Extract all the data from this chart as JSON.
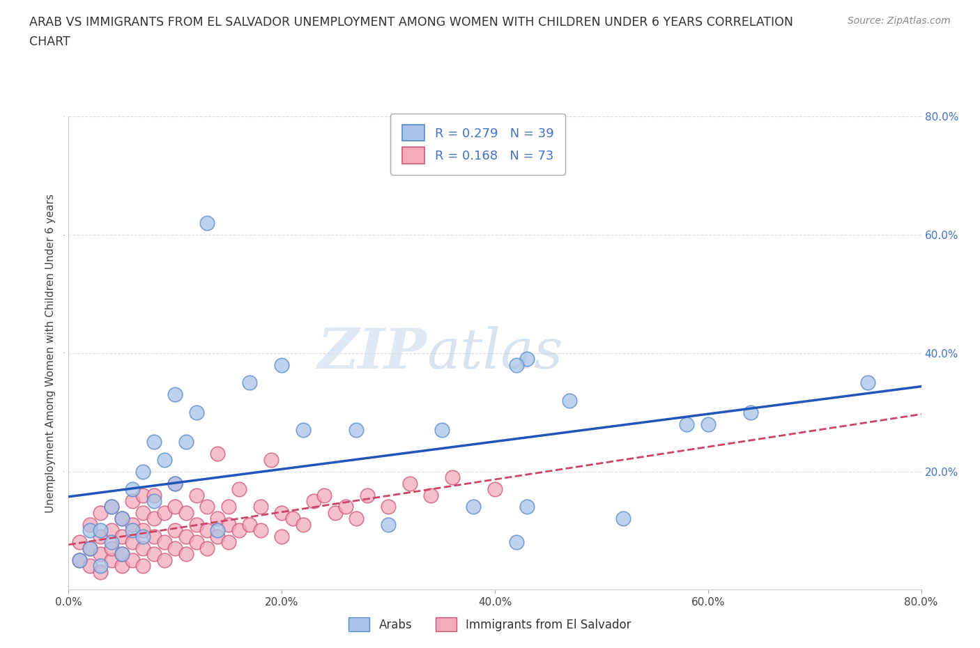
{
  "title_line1": "ARAB VS IMMIGRANTS FROM EL SALVADOR UNEMPLOYMENT AMONG WOMEN WITH CHILDREN UNDER 6 YEARS CORRELATION",
  "title_line2": "CHART",
  "source": "Source: ZipAtlas.com",
  "ylabel": "Unemployment Among Women with Children Under 6 years",
  "xlim": [
    0.0,
    0.8
  ],
  "ylim": [
    0.0,
    0.8
  ],
  "xtick_labels": [
    "0.0%",
    "20.0%",
    "40.0%",
    "60.0%",
    "80.0%"
  ],
  "xtick_values": [
    0.0,
    0.2,
    0.4,
    0.6,
    0.8
  ],
  "ytick_labels": [
    "20.0%",
    "40.0%",
    "60.0%",
    "80.0%"
  ],
  "ytick_values": [
    0.2,
    0.4,
    0.6,
    0.8
  ],
  "background_color": "#ffffff",
  "grid_color": "#dddddd",
  "watermark_zip": "ZIP",
  "watermark_atlas": "atlas",
  "arab_color": "#aac4e8",
  "salvador_color": "#f4aabb",
  "arab_edge_color": "#5588cc",
  "salvador_edge_color": "#cc5577",
  "arab_line_color": "#2255bb",
  "salvador_line_color": "#cc4466",
  "r_arab": 0.279,
  "n_arab": 39,
  "r_salvador": 0.168,
  "n_salvador": 73,
  "legend_label_arab": "Arabs",
  "legend_label_salvador": "Immigrants from El Salvador",
  "arab_scatter_x": [
    0.01,
    0.02,
    0.02,
    0.03,
    0.03,
    0.04,
    0.04,
    0.05,
    0.05,
    0.06,
    0.06,
    0.07,
    0.07,
    0.08,
    0.08,
    0.09,
    0.1,
    0.1,
    0.11,
    0.12,
    0.13,
    0.14,
    0.17,
    0.2,
    0.22,
    0.27,
    0.3,
    0.35,
    0.42,
    0.6,
    0.43,
    0.38,
    0.42,
    0.43,
    0.47,
    0.52,
    0.58,
    0.64,
    0.75
  ],
  "arab_scatter_y": [
    0.05,
    0.07,
    0.1,
    0.04,
    0.1,
    0.08,
    0.14,
    0.06,
    0.12,
    0.1,
    0.17,
    0.09,
    0.2,
    0.15,
    0.25,
    0.22,
    0.18,
    0.33,
    0.25,
    0.3,
    0.62,
    0.1,
    0.35,
    0.38,
    0.27,
    0.27,
    0.11,
    0.27,
    0.08,
    0.28,
    0.39,
    0.14,
    0.38,
    0.14,
    0.32,
    0.12,
    0.28,
    0.3,
    0.35
  ],
  "salvador_scatter_x": [
    0.01,
    0.01,
    0.02,
    0.02,
    0.02,
    0.03,
    0.03,
    0.03,
    0.03,
    0.04,
    0.04,
    0.04,
    0.04,
    0.05,
    0.05,
    0.05,
    0.05,
    0.06,
    0.06,
    0.06,
    0.06,
    0.07,
    0.07,
    0.07,
    0.07,
    0.07,
    0.08,
    0.08,
    0.08,
    0.08,
    0.09,
    0.09,
    0.09,
    0.1,
    0.1,
    0.1,
    0.1,
    0.11,
    0.11,
    0.11,
    0.12,
    0.12,
    0.12,
    0.13,
    0.13,
    0.13,
    0.14,
    0.14,
    0.14,
    0.15,
    0.15,
    0.15,
    0.16,
    0.16,
    0.17,
    0.18,
    0.18,
    0.19,
    0.2,
    0.2,
    0.21,
    0.22,
    0.23,
    0.24,
    0.25,
    0.26,
    0.27,
    0.28,
    0.3,
    0.32,
    0.34,
    0.36,
    0.4
  ],
  "salvador_scatter_y": [
    0.05,
    0.08,
    0.04,
    0.07,
    0.11,
    0.03,
    0.06,
    0.09,
    0.13,
    0.05,
    0.07,
    0.1,
    0.14,
    0.04,
    0.06,
    0.09,
    0.12,
    0.05,
    0.08,
    0.11,
    0.15,
    0.04,
    0.07,
    0.1,
    0.13,
    0.16,
    0.06,
    0.09,
    0.12,
    0.16,
    0.05,
    0.08,
    0.13,
    0.07,
    0.1,
    0.14,
    0.18,
    0.06,
    0.09,
    0.13,
    0.08,
    0.11,
    0.16,
    0.07,
    0.1,
    0.14,
    0.09,
    0.12,
    0.23,
    0.08,
    0.11,
    0.14,
    0.1,
    0.17,
    0.11,
    0.1,
    0.14,
    0.22,
    0.09,
    0.13,
    0.12,
    0.11,
    0.15,
    0.16,
    0.13,
    0.14,
    0.12,
    0.16,
    0.14,
    0.18,
    0.16,
    0.19,
    0.17
  ]
}
